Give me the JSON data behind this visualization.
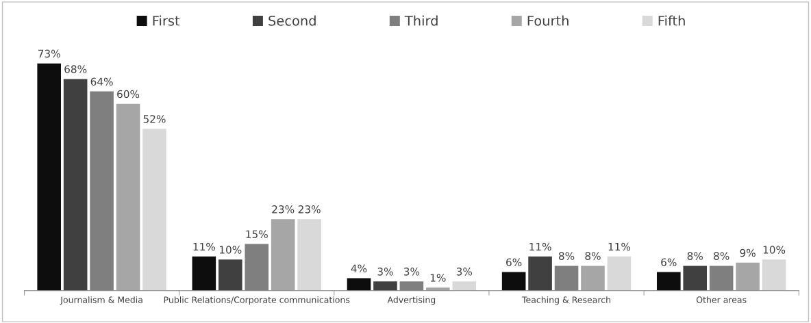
{
  "chart_data": {
    "type": "bar",
    "categories": [
      "Journalism & Media",
      "Public Relations/Corporate communications",
      "Advertising",
      "Teaching & Research",
      "Other areas"
    ],
    "series": [
      {
        "name": "First",
        "color": "#0d0d0d",
        "values": [
          73,
          11,
          4,
          6,
          6
        ],
        "value_labels": [
          "73%",
          "11%",
          "4%",
          "6%",
          "6%"
        ]
      },
      {
        "name": "Second",
        "color": "#404040",
        "values": [
          68,
          10,
          3,
          11,
          8
        ],
        "value_labels": [
          "68%",
          "10%",
          "3%",
          "11%",
          "8%"
        ]
      },
      {
        "name": "Third",
        "color": "#7f7f7f",
        "values": [
          64,
          15,
          3,
          8,
          8
        ],
        "value_labels": [
          "64%",
          "15%",
          "3%",
          "8%",
          "8%"
        ]
      },
      {
        "name": "Fourth",
        "color": "#a6a6a6",
        "values": [
          60,
          23,
          1,
          8,
          9
        ],
        "value_labels": [
          "60%",
          "23%",
          "1%",
          "8%",
          "9%"
        ]
      },
      {
        "name": "Fifth",
        "color": "#d9d9d9",
        "values": [
          52,
          23,
          3,
          11,
          10
        ],
        "value_labels": [
          "52%",
          "23%",
          "3%",
          "11%",
          "10%"
        ]
      }
    ],
    "legend": "top",
    "grid": false
  }
}
